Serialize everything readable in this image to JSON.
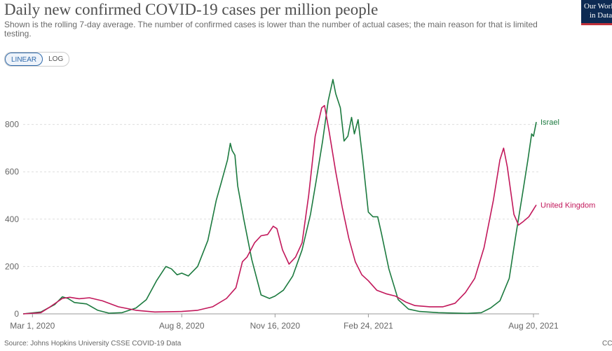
{
  "header": {
    "title": "Daily new confirmed COVID-19 cases per million people",
    "subtitle": "Shown is the rolling 7-day average. The number of confirmed cases is lower than the number of actual cases; the main reason for that is limited testing.",
    "logo_line1": "Our World",
    "logo_line2": "in Data"
  },
  "controls": {
    "linear_label": "LINEAR",
    "log_label": "LOG",
    "selected": "LINEAR"
  },
  "footer": {
    "source": "Source: Johns Hopkins University CSSE COVID-19 Data",
    "license": "CC BY"
  },
  "colors": {
    "Israel": "#1c7a3f",
    "United Kingdom": "#c2185b",
    "grid": "#dddddd"
  },
  "chart_data": {
    "type": "line",
    "title": "Daily new confirmed COVID-19 cases per million people",
    "xlabel": "",
    "ylabel": "",
    "x_range": [
      "2020-02-20",
      "2021-08-26"
    ],
    "ylim": [
      0,
      1000
    ],
    "yticks": [
      0,
      200,
      400,
      600,
      800
    ],
    "xtick_labels": [
      "Mar 1, 2020",
      "Aug 8, 2020",
      "Nov 16, 2020",
      "Feb 24, 2021",
      "Aug 20, 2021"
    ],
    "xtick_dates": [
      "2020-03-01",
      "2020-08-08",
      "2020-11-16",
      "2021-02-24",
      "2021-08-20"
    ],
    "grid": true,
    "legend": "end-of-line labels",
    "series": [
      {
        "name": "Israel",
        "points": [
          [
            "2020-02-20",
            0
          ],
          [
            "2020-03-10",
            8
          ],
          [
            "2020-03-25",
            40
          ],
          [
            "2020-04-02",
            72
          ],
          [
            "2020-04-08",
            65
          ],
          [
            "2020-04-15",
            48
          ],
          [
            "2020-04-28",
            42
          ],
          [
            "2020-05-10",
            15
          ],
          [
            "2020-05-22",
            3
          ],
          [
            "2020-06-05",
            5
          ],
          [
            "2020-06-20",
            25
          ],
          [
            "2020-07-01",
            60
          ],
          [
            "2020-07-12",
            140
          ],
          [
            "2020-07-22",
            200
          ],
          [
            "2020-07-28",
            190
          ],
          [
            "2020-08-03",
            165
          ],
          [
            "2020-08-08",
            172
          ],
          [
            "2020-08-15",
            160
          ],
          [
            "2020-08-25",
            200
          ],
          [
            "2020-09-05",
            310
          ],
          [
            "2020-09-14",
            480
          ],
          [
            "2020-09-19",
            550
          ],
          [
            "2020-09-26",
            650
          ],
          [
            "2020-09-29",
            720
          ],
          [
            "2020-10-01",
            690
          ],
          [
            "2020-10-04",
            670
          ],
          [
            "2020-10-07",
            540
          ],
          [
            "2020-10-14",
            390
          ],
          [
            "2020-10-22",
            230
          ],
          [
            "2020-11-01",
            80
          ],
          [
            "2020-11-10",
            65
          ],
          [
            "2020-11-16",
            75
          ],
          [
            "2020-11-25",
            100
          ],
          [
            "2020-12-05",
            160
          ],
          [
            "2020-12-15",
            270
          ],
          [
            "2020-12-24",
            420
          ],
          [
            "2020-12-30",
            560
          ],
          [
            "2021-01-06",
            730
          ],
          [
            "2021-01-12",
            900
          ],
          [
            "2021-01-17",
            990
          ],
          [
            "2021-01-20",
            930
          ],
          [
            "2021-01-25",
            870
          ],
          [
            "2021-01-29",
            730
          ],
          [
            "2021-02-02",
            750
          ],
          [
            "2021-02-06",
            830
          ],
          [
            "2021-02-09",
            760
          ],
          [
            "2021-02-13",
            820
          ],
          [
            "2021-02-18",
            650
          ],
          [
            "2021-02-24",
            430
          ],
          [
            "2021-03-01",
            410
          ],
          [
            "2021-03-06",
            410
          ],
          [
            "2021-03-10",
            340
          ],
          [
            "2021-03-18",
            190
          ],
          [
            "2021-03-28",
            60
          ],
          [
            "2021-04-08",
            20
          ],
          [
            "2021-04-20",
            10
          ],
          [
            "2021-05-10",
            5
          ],
          [
            "2021-06-10",
            2
          ],
          [
            "2021-06-25",
            5
          ],
          [
            "2021-07-05",
            25
          ],
          [
            "2021-07-15",
            55
          ],
          [
            "2021-07-25",
            150
          ],
          [
            "2021-08-01",
            330
          ],
          [
            "2021-08-08",
            500
          ],
          [
            "2021-08-14",
            650
          ],
          [
            "2021-08-18",
            760
          ],
          [
            "2021-08-20",
            750
          ],
          [
            "2021-08-23",
            810
          ]
        ]
      },
      {
        "name": "United Kingdom",
        "points": [
          [
            "2020-02-20",
            0
          ],
          [
            "2020-03-10",
            5
          ],
          [
            "2020-03-20",
            30
          ],
          [
            "2020-04-02",
            65
          ],
          [
            "2020-04-10",
            70
          ],
          [
            "2020-04-20",
            64
          ],
          [
            "2020-05-01",
            68
          ],
          [
            "2020-05-15",
            55
          ],
          [
            "2020-06-01",
            30
          ],
          [
            "2020-06-20",
            15
          ],
          [
            "2020-07-10",
            8
          ],
          [
            "2020-08-08",
            10
          ],
          [
            "2020-08-25",
            15
          ],
          [
            "2020-09-10",
            30
          ],
          [
            "2020-09-25",
            65
          ],
          [
            "2020-10-05",
            110
          ],
          [
            "2020-10-12",
            220
          ],
          [
            "2020-10-17",
            240
          ],
          [
            "2020-10-25",
            300
          ],
          [
            "2020-11-01",
            330
          ],
          [
            "2020-11-08",
            335
          ],
          [
            "2020-11-14",
            370
          ],
          [
            "2020-11-18",
            360
          ],
          [
            "2020-11-24",
            270
          ],
          [
            "2020-12-01",
            210
          ],
          [
            "2020-12-08",
            240
          ],
          [
            "2020-12-15",
            300
          ],
          [
            "2020-12-22",
            500
          ],
          [
            "2020-12-29",
            750
          ],
          [
            "2021-01-05",
            870
          ],
          [
            "2021-01-08",
            880
          ],
          [
            "2021-01-13",
            770
          ],
          [
            "2021-01-20",
            600
          ],
          [
            "2021-01-27",
            450
          ],
          [
            "2021-02-03",
            320
          ],
          [
            "2021-02-10",
            220
          ],
          [
            "2021-02-17",
            165
          ],
          [
            "2021-02-24",
            140
          ],
          [
            "2021-03-05",
            100
          ],
          [
            "2021-03-15",
            85
          ],
          [
            "2021-03-25",
            75
          ],
          [
            "2021-04-05",
            50
          ],
          [
            "2021-04-15",
            35
          ],
          [
            "2021-05-01",
            30
          ],
          [
            "2021-05-15",
            30
          ],
          [
            "2021-05-28",
            45
          ],
          [
            "2021-06-08",
            90
          ],
          [
            "2021-06-18",
            150
          ],
          [
            "2021-06-28",
            280
          ],
          [
            "2021-07-08",
            480
          ],
          [
            "2021-07-15",
            650
          ],
          [
            "2021-07-19",
            700
          ],
          [
            "2021-07-23",
            620
          ],
          [
            "2021-07-30",
            420
          ],
          [
            "2021-08-04",
            375
          ],
          [
            "2021-08-09",
            390
          ],
          [
            "2021-08-15",
            410
          ],
          [
            "2021-08-23",
            460
          ]
        ]
      }
    ]
  }
}
